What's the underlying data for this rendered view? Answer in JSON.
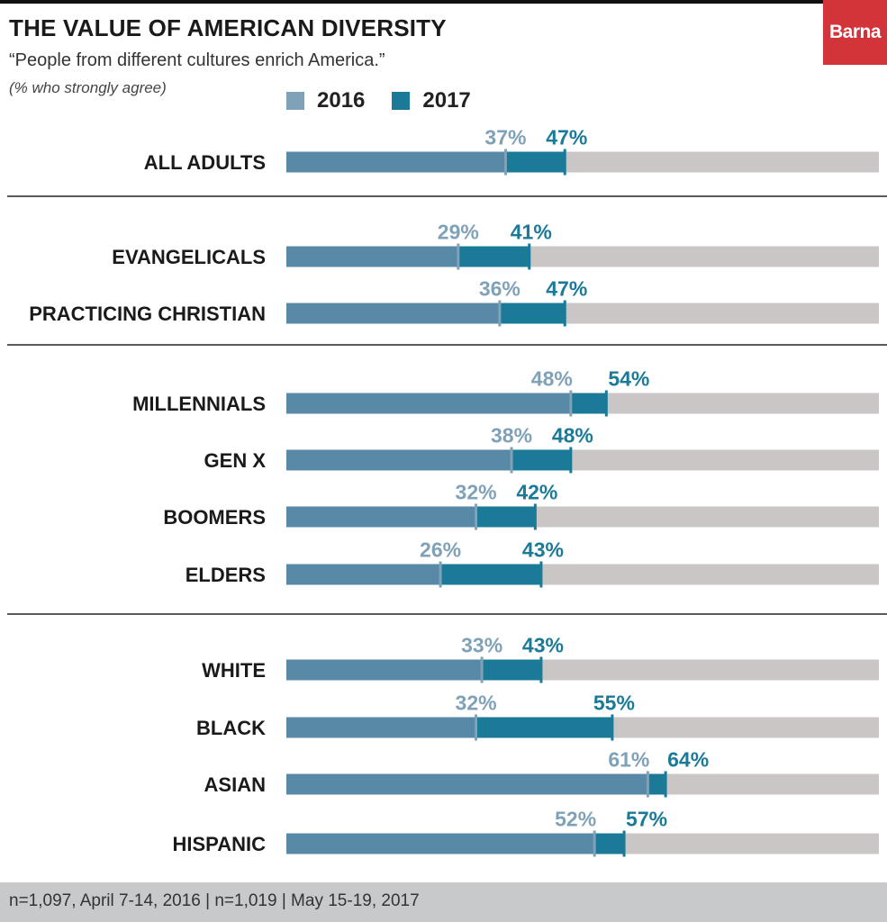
{
  "header": {
    "title": "THE VALUE OF AMERICAN DIVERSITY",
    "subtitle": "“People from different cultures enrich America.”",
    "note": "(% who strongly agree)",
    "logo": "Barna"
  },
  "colors": {
    "series_2016": "#5889a6",
    "series_2016_label": "#7fa2b8",
    "series_2017": "#1b7a97",
    "track": "#cbc6c6",
    "brand": "#d2343a",
    "divider": "#222222"
  },
  "footer": {
    "text": "n=1,097, April 7-14, 2016 | n=1,019 | May 15-19, 2017"
  },
  "chart_data": {
    "type": "bar",
    "orientation": "horizontal",
    "title": "THE VALUE OF AMERICAN DIVERSITY",
    "subtitle": "“People from different cultures enrich America.”",
    "ylabel": "(% who strongly agree)",
    "xlim": [
      0,
      100
    ],
    "legend": {
      "position": "top",
      "entries": [
        "2016",
        "2017"
      ]
    },
    "groups": [
      {
        "rows": [
          {
            "category": "ALL ADULTS",
            "v2016": 37,
            "v2017": 47
          }
        ]
      },
      {
        "rows": [
          {
            "category": "EVANGELICALS",
            "v2016": 29,
            "v2017": 41
          },
          {
            "category": "PRACTICING CHRISTIAN",
            "v2016": 36,
            "v2017": 47
          }
        ]
      },
      {
        "rows": [
          {
            "category": "MILLENNIALS",
            "v2016": 48,
            "v2017": 54
          },
          {
            "category": "GEN X",
            "v2016": 38,
            "v2017": 48
          },
          {
            "category": "BOOMERS",
            "v2016": 32,
            "v2017": 42
          },
          {
            "category": "ELDERS",
            "v2016": 26,
            "v2017": 43
          }
        ]
      },
      {
        "rows": [
          {
            "category": "WHITE",
            "v2016": 33,
            "v2017": 43
          },
          {
            "category": "BLACK",
            "v2016": 32,
            "v2017": 55
          },
          {
            "category": "ASIAN",
            "v2016": 61,
            "v2017": 64
          },
          {
            "category": "HISPANIC",
            "v2016": 52,
            "v2017": 57
          }
        ]
      }
    ],
    "series": [
      {
        "name": "2016",
        "values": [
          37,
          29,
          36,
          48,
          38,
          32,
          26,
          33,
          32,
          61,
          52
        ]
      },
      {
        "name": "2017",
        "values": [
          47,
          41,
          47,
          54,
          48,
          42,
          43,
          43,
          55,
          64,
          57
        ]
      }
    ],
    "categories": [
      "ALL ADULTS",
      "EVANGELICALS",
      "PRACTICING CHRISTIAN",
      "MILLENNIALS",
      "GEN X",
      "BOOMERS",
      "ELDERS",
      "WHITE",
      "BLACK",
      "ASIAN",
      "HISPANIC"
    ]
  }
}
